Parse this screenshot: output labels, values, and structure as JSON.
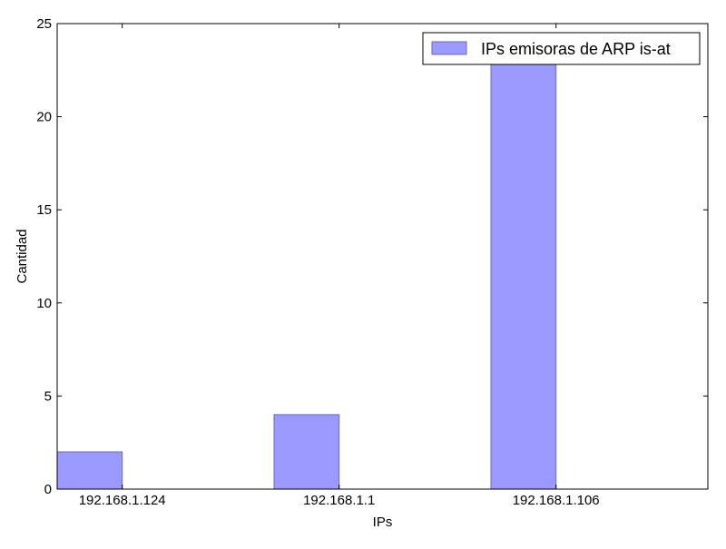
{
  "chart_data": {
    "type": "bar",
    "categories": [
      "192.168.1.124",
      "192.168.1.1",
      "192.168.1.106"
    ],
    "series": [
      {
        "name": "IPs emisoras de ARP is-at",
        "values": [
          2,
          4,
          24
        ],
        "color": "#9999ff",
        "edge_color": "#6b6bb3"
      }
    ],
    "xlabel": "IPs",
    "ylabel": "Cantidad",
    "ylim": [
      0,
      25
    ],
    "yticks": [
      0,
      5,
      10,
      15,
      20,
      25
    ],
    "legend": "top-right",
    "grid": false
  }
}
